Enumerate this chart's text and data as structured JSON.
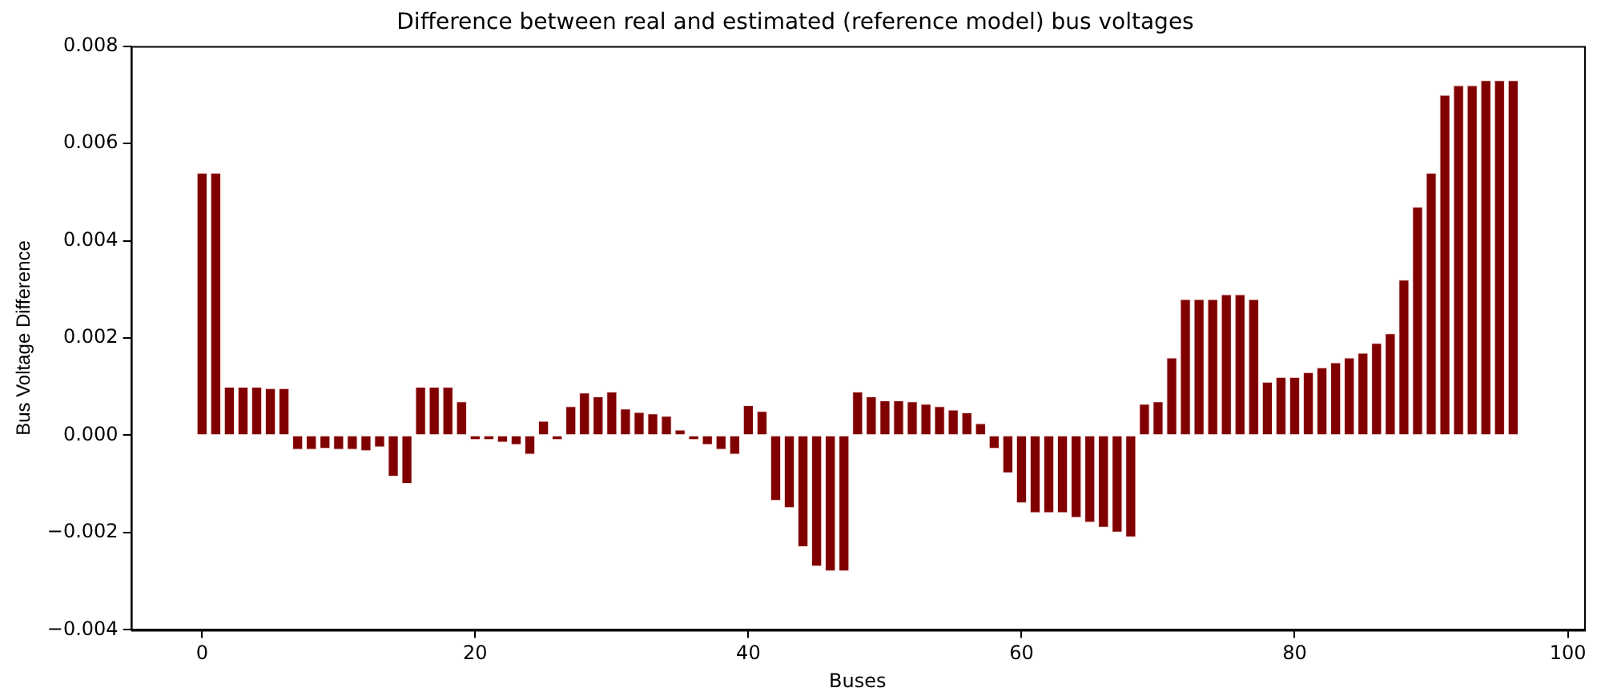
{
  "chart_data": {
    "type": "bar",
    "title": "Difference between real and estimated (reference model) bus voltages",
    "xlabel": "Buses",
    "ylabel": "Bus Voltage Difference",
    "x": [
      0,
      1,
      2,
      3,
      4,
      5,
      6,
      7,
      8,
      9,
      10,
      11,
      12,
      13,
      14,
      15,
      16,
      17,
      18,
      19,
      20,
      21,
      22,
      23,
      24,
      25,
      26,
      27,
      28,
      29,
      30,
      31,
      32,
      33,
      34,
      35,
      36,
      37,
      38,
      39,
      40,
      41,
      42,
      43,
      44,
      45,
      46,
      47,
      48,
      49,
      50,
      51,
      52,
      53,
      54,
      55,
      56,
      57,
      58,
      59,
      60,
      61,
      62,
      63,
      64,
      65,
      66,
      67,
      68,
      69,
      70,
      71,
      72,
      73,
      74,
      75,
      76,
      77,
      78,
      79,
      80,
      81,
      82,
      83,
      84,
      85,
      86,
      87,
      88,
      89,
      90,
      91,
      92,
      93,
      94,
      95,
      96
    ],
    "series": [
      {
        "color": "#800000",
        "values": [
          0.0054,
          0.0054,
          0.001,
          0.001,
          0.001,
          0.00097,
          0.00097,
          -0.0003,
          -0.0003,
          -0.00028,
          -0.0003,
          -0.0003,
          -0.00033,
          -0.00025,
          -0.00085,
          -0.001,
          0.001,
          0.001,
          0.001,
          0.0007,
          -0.0001,
          -0.0001,
          -0.00015,
          -0.0002,
          -0.0004,
          0.0003,
          -0.0001,
          0.0006,
          0.00088,
          0.0008,
          0.0009,
          0.00055,
          0.00048,
          0.00045,
          0.0004,
          0.00012,
          -0.0001,
          -0.0002,
          -0.0003,
          -0.0004,
          0.00062,
          0.0005,
          -0.00135,
          -0.0015,
          -0.0023,
          -0.0027,
          -0.0028,
          -0.0028,
          0.0009,
          0.0008,
          0.00072,
          0.00072,
          0.0007,
          0.00065,
          0.0006,
          0.00053,
          0.00047,
          0.00025,
          -0.00028,
          -0.00078,
          -0.0014,
          -0.0016,
          -0.0016,
          -0.0016,
          -0.0017,
          -0.0018,
          -0.0019,
          -0.002,
          -0.0021,
          0.00065,
          0.0007,
          0.0016,
          0.0028,
          0.0028,
          0.0028,
          0.0029,
          0.0029,
          0.0028,
          0.0011,
          0.0012,
          0.0012,
          0.0013,
          0.0014,
          0.0015,
          0.0016,
          0.0017,
          0.0019,
          0.0021,
          0.0032,
          0.0047,
          0.0054,
          0.007,
          0.0072,
          0.0072,
          0.0073,
          0.0073,
          0.0073
        ]
      }
    ],
    "xlim": [
      -5.2,
      101.2
    ],
    "xticks": [
      0,
      20,
      40,
      60,
      80,
      100
    ],
    "ylim": [
      -0.004,
      0.008
    ],
    "yticks": [
      {
        "value": -0.004,
        "label": "−0.004"
      },
      {
        "value": -0.002,
        "label": "−0.002"
      },
      {
        "value": 0,
        "label": "0.000"
      },
      {
        "value": 0.002,
        "label": "0.002"
      },
      {
        "value": 0.004,
        "label": "0.004"
      },
      {
        "value": 0.006,
        "label": "0.006"
      },
      {
        "value": 0.008,
        "label": "0.008"
      }
    ],
    "grid": false,
    "legend": false
  }
}
